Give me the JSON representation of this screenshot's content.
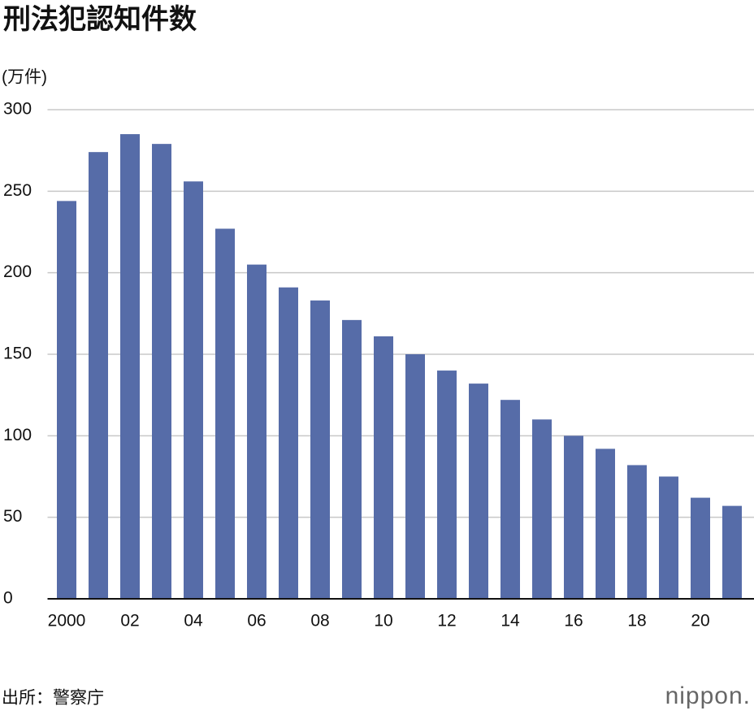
{
  "chart_data": {
    "type": "bar",
    "title": "刑法犯認知件数",
    "y_label": "(万件)",
    "categories": [
      "2000",
      null,
      "02",
      null,
      "04",
      null,
      "06",
      null,
      "08",
      null,
      "10",
      null,
      "12",
      null,
      "14",
      null,
      "16",
      null,
      "18",
      null,
      "20",
      null
    ],
    "values": [
      244,
      274,
      285,
      279,
      256,
      227,
      205,
      191,
      183,
      171,
      161,
      150,
      140,
      132,
      122,
      110,
      100,
      92,
      82,
      75,
      62,
      57
    ],
    "color": "#566ca8",
    "ylim": [
      0,
      300
    ],
    "yticks": [
      0,
      50,
      100,
      150,
      200,
      250,
      300
    ],
    "grid": true,
    "source": "出所：警察庁",
    "logo": "nippon."
  }
}
